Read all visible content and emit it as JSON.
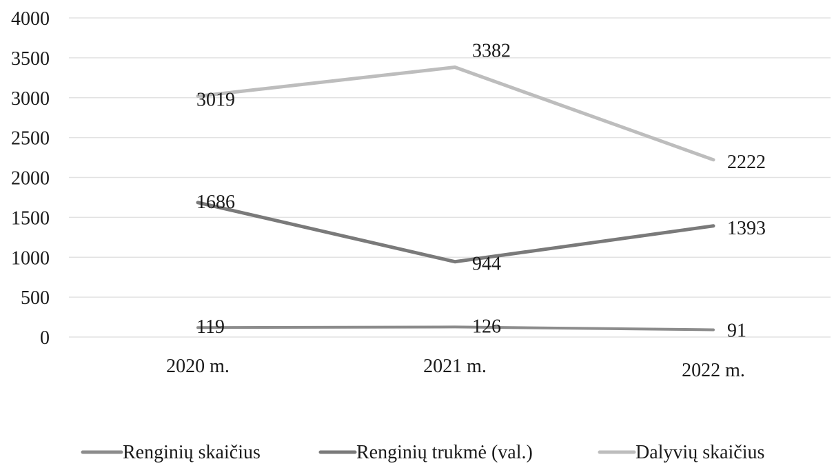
{
  "chart_data": {
    "type": "line",
    "categories": [
      "2020 m.",
      "2021 m.",
      "2022 m."
    ],
    "ylim": [
      0,
      4000
    ],
    "yticks": [
      0,
      500,
      1000,
      1500,
      2000,
      2500,
      3000,
      3500,
      4000
    ],
    "grid": true,
    "legend_position": "bottom",
    "series": [
      {
        "name": "Renginių skaičius",
        "values": [
          119,
          126,
          91
        ],
        "color": "#8c8c8c"
      },
      {
        "name": "Renginių trukmė (val.)",
        "values": [
          1686,
          944,
          1393
        ],
        "color": "#7a7a7a"
      },
      {
        "name": "Dalyvių skaičius",
        "values": [
          3019,
          3382,
          2222
        ],
        "color": "#bdbdbd"
      }
    ]
  }
}
